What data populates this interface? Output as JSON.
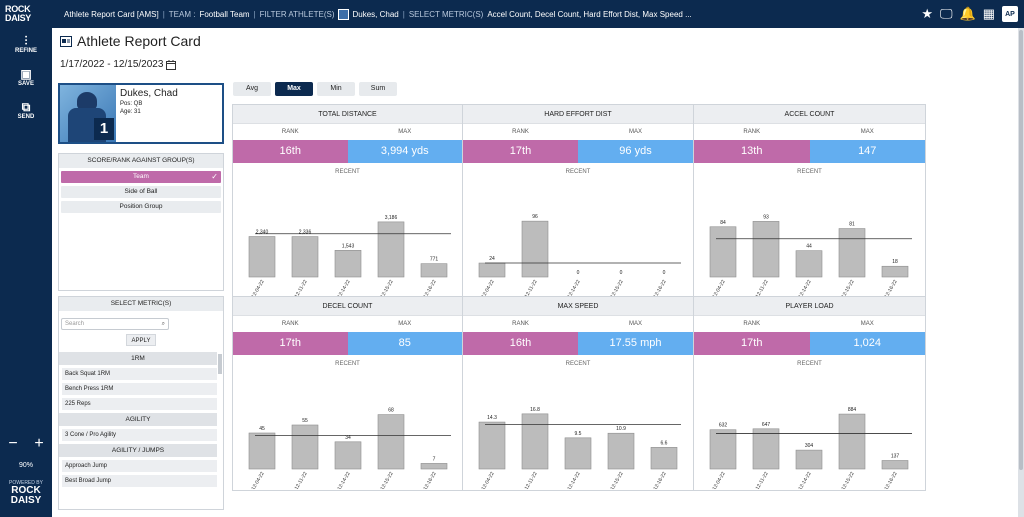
{
  "topbar": {
    "logo_line1": "ROCK",
    "logo_line2": "DAISY",
    "app_title": "Athlete Report Card [AMS]",
    "team_label": "TEAM :",
    "team_value": "Football Team",
    "filter_label": "FILTER ATHLETE(S)",
    "athlete_value": "Dukes, Chad",
    "metric_label": "SELECT METRIC(S)",
    "metric_value": "Accel Count,  Decel Count,  Hard Effort Dist,  Max Speed ...",
    "avatar": "AP",
    "icons": [
      "star-icon",
      "monitor-icon",
      "bell-icon",
      "grid-icon"
    ]
  },
  "sidebar": {
    "refine": "REFINE",
    "save": "SAVE",
    "send": "SEND",
    "zoom_out": "−",
    "zoom_in": "+",
    "zoom": "90%",
    "powered_by": "POWERED BY",
    "brand1": "ROCK",
    "brand2": "DAISY"
  },
  "page": {
    "title": "Athlete Report Card",
    "date_range": "1/17/2022 - 12/15/2023"
  },
  "athlete": {
    "name": "Dukes, Chad",
    "pos": "Pos: QB",
    "age": "Age: 31",
    "number": "1"
  },
  "score_box": {
    "header": "SCORE/RANK AGAINST GROUP(S)",
    "options": [
      "Team",
      "Side of Ball",
      "Position Group"
    ],
    "selected": "Team"
  },
  "metric_box": {
    "header": "SELECT METRIC(S)",
    "search_placeholder": "Search",
    "apply": "APPLY",
    "groups": [
      {
        "name": "1RM",
        "items": [
          "Back Squat 1RM",
          "Bench Press 1RM",
          "225 Reps"
        ]
      },
      {
        "name": "AGILITY",
        "items": [
          "3 Cone / Pro Agility"
        ]
      },
      {
        "name": "AGILITY / JUMPS",
        "items": [
          "Approach Jump",
          "Best Broad Jump"
        ]
      }
    ]
  },
  "stat_buttons": [
    "Avg",
    "Max",
    "Min",
    "Sum"
  ],
  "selected_stat": "Max",
  "rank_label": "RANK",
  "max_label": "MAX",
  "recent_label": "RECENT",
  "colors": {
    "navy": "#0c2a4f",
    "rank": "#bf6aa9",
    "max": "#63aef0",
    "bar": "#bcbcbc"
  },
  "panels": [
    {
      "title": "TOTAL DISTANCE",
      "rank": "16th",
      "max": "3,994 yds"
    },
    {
      "title": "HARD EFFORT DIST",
      "rank": "17th",
      "max": "96 yds"
    },
    {
      "title": "ACCEL COUNT",
      "rank": "13th",
      "max": "147"
    },
    {
      "title": "DECEL COUNT",
      "rank": "17th",
      "max": "85"
    },
    {
      "title": "MAX SPEED",
      "rank": "16th",
      "max": "17.55 mph"
    },
    {
      "title": "PLAYER LOAD",
      "rank": "17th",
      "max": "1,024"
    }
  ],
  "chart_data": [
    {
      "type": "bar",
      "title": "TOTAL DISTANCE",
      "categories": [
        "12-04-22",
        "12-11-22",
        "12-14-22",
        "12-15-22",
        "12-16-22"
      ],
      "values": [
        2340,
        2336,
        1543,
        3186,
        771
      ],
      "labels": [
        "2,340",
        "2,336",
        "1,543",
        "3,186",
        "771"
      ],
      "average_line": 2500,
      "ylim": [
        0,
        3700
      ]
    },
    {
      "type": "bar",
      "title": "HARD EFFORT DIST",
      "categories": [
        "12-04-22",
        "12-11-22",
        "12-14-22",
        "12-15-22",
        "12-16-22"
      ],
      "values": [
        24,
        96,
        0,
        0,
        0
      ],
      "labels": [
        "24",
        "96",
        "0",
        "0",
        "0"
      ],
      "average_line": 24,
      "ylim": [
        0,
        110
      ]
    },
    {
      "type": "bar",
      "title": "ACCEL COUNT",
      "categories": [
        "12-04-22",
        "12-11-22",
        "12-14-22",
        "12-15-22",
        "12-16-22"
      ],
      "values": [
        84,
        93,
        44,
        81,
        18
      ],
      "labels": [
        "84",
        "93",
        "44",
        "81",
        "18"
      ],
      "average_line": 64,
      "ylim": [
        0,
        107
      ]
    },
    {
      "type": "bar",
      "title": "DECEL COUNT",
      "categories": [
        "12-04-22",
        "12-11-22",
        "12-14-22",
        "12-15-22",
        "12-16-22"
      ],
      "values": [
        45,
        55,
        34,
        68,
        7
      ],
      "labels": [
        "45",
        "55",
        "34",
        "68",
        "7"
      ],
      "average_line": 42,
      "ylim": [
        0,
        80
      ]
    },
    {
      "type": "bar",
      "title": "MAX SPEED",
      "categories": [
        "12-04-22",
        "12-11-22",
        "12-14-22",
        "12-15-22",
        "12-16-22"
      ],
      "values": [
        14.3,
        16.8,
        9.5,
        10.9,
        6.6
      ],
      "labels": [
        "14.3",
        "16.8",
        "9.5",
        "10.9",
        "6.6"
      ],
      "average_line": 13.6,
      "ylim": [
        0,
        19.5
      ]
    },
    {
      "type": "bar",
      "title": "PLAYER LOAD",
      "categories": [
        "12-04-22",
        "12-11-22",
        "12-14-22",
        "12-15-22",
        "12-16-22"
      ],
      "values": [
        632,
        647,
        304,
        884,
        137
      ],
      "labels": [
        "632",
        "647",
        "304",
        "884",
        "137"
      ],
      "average_line": 570,
      "ylim": [
        0,
        1030
      ]
    }
  ]
}
